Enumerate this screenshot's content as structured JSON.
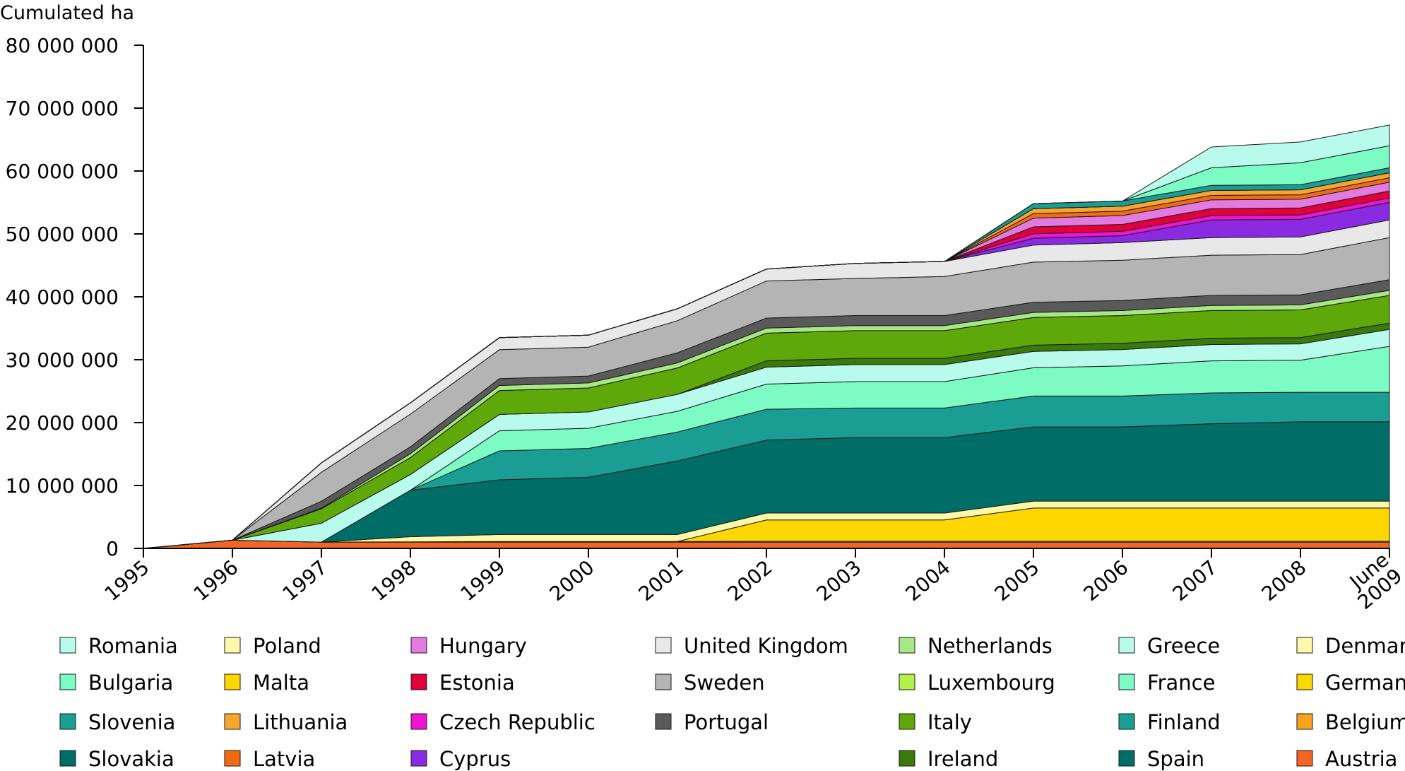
{
  "chart_data": {
    "type": "area",
    "stacked": true,
    "ylabel": "Cumulated ha",
    "ylim": [
      0,
      80000000
    ],
    "yticks": [
      {
        "value": 0,
        "label": "0"
      },
      {
        "value": 10000000,
        "label": "10 000 000"
      },
      {
        "value": 20000000,
        "label": "20 000 000"
      },
      {
        "value": 30000000,
        "label": "30 000 000"
      },
      {
        "value": 40000000,
        "label": "40 000 000"
      },
      {
        "value": 50000000,
        "label": "50 000 000"
      },
      {
        "value": 60000000,
        "label": "60 000 000"
      },
      {
        "value": 70000000,
        "label": "70 000 000"
      },
      {
        "value": 80000000,
        "label": "80 000 000"
      }
    ],
    "categories": [
      "1995",
      "1996",
      "1997",
      "1998",
      "1999",
      "2000",
      "2001",
      "2002",
      "2003",
      "2004",
      "2005",
      "2006",
      "2007",
      "2008",
      "June 2009"
    ],
    "grid": false,
    "legend_position": "bottom",
    "series": [
      {
        "name": "Austria",
        "color": "#f26522",
        "values": [
          0,
          1300000,
          1000000,
          1000000,
          1000000,
          1000000,
          1000000,
          1000000,
          1000000,
          1000000,
          1000000,
          1000000,
          1000000,
          1000000,
          1000000
        ]
      },
      {
        "name": "Belgium",
        "color": "#f7a21b",
        "values": [
          0,
          0,
          0,
          50000,
          100000,
          100000,
          100000,
          120000,
          120000,
          120000,
          120000,
          120000,
          120000,
          120000,
          120000
        ]
      },
      {
        "name": "Germany",
        "color": "#ffd700",
        "values": [
          0,
          0,
          0,
          0,
          0,
          0,
          0,
          3400000,
          3400000,
          3400000,
          5300000,
          5300000,
          5300000,
          5300000,
          5300000
        ]
      },
      {
        "name": "Denmark",
        "color": "#fff8a8",
        "values": [
          0,
          0,
          0,
          800000,
          1100000,
          1100000,
          1100000,
          1100000,
          1100000,
          1100000,
          1100000,
          1100000,
          1100000,
          1100000,
          1100000
        ]
      },
      {
        "name": "Spain",
        "color": "#006e66",
        "values": [
          0,
          0,
          0,
          7400000,
          8700000,
          9100000,
          11700000,
          11600000,
          12000000,
          12000000,
          11800000,
          11800000,
          12300000,
          12600000,
          12600000
        ]
      },
      {
        "name": "Finland",
        "color": "#1a9e94",
        "values": [
          0,
          0,
          0,
          0,
          4600000,
          4600000,
          4600000,
          4900000,
          4700000,
          4700000,
          4900000,
          4900000,
          4900000,
          4700000,
          4700000
        ]
      },
      {
        "name": "France",
        "color": "#7dfbc4",
        "values": [
          0,
          0,
          0,
          0,
          3200000,
          3200000,
          3300000,
          4000000,
          4200000,
          4200000,
          4500000,
          4800000,
          5100000,
          5100000,
          7300000
        ]
      },
      {
        "name": "Greece",
        "color": "#b8fbec",
        "values": [
          0,
          0,
          3000000,
          2500000,
          2600000,
          2600000,
          2700000,
          2700000,
          2700000,
          2700000,
          2600000,
          2600000,
          2600000,
          2600000,
          2700000
        ]
      },
      {
        "name": "Ireland",
        "color": "#3a7a0a",
        "values": [
          0,
          0,
          0,
          0,
          0,
          0,
          0,
          1000000,
          1000000,
          1000000,
          1000000,
          1000000,
          1000000,
          1000000,
          1000000
        ]
      },
      {
        "name": "Italy",
        "color": "#5fa80a",
        "values": [
          0,
          0,
          2300000,
          2700000,
          3800000,
          3800000,
          4200000,
          4400000,
          4400000,
          4400000,
          4400000,
          4400000,
          4400000,
          4400000,
          4400000
        ]
      },
      {
        "name": "Luxembourg",
        "color": "#b0f24a",
        "values": [
          0,
          0,
          0,
          0,
          0,
          0,
          0,
          0,
          0,
          0,
          0,
          0,
          0,
          0,
          0
        ]
      },
      {
        "name": "Netherlands",
        "color": "#a8e884",
        "values": [
          0,
          0,
          100000,
          600000,
          800000,
          800000,
          800000,
          800000,
          800000,
          800000,
          800000,
          800000,
          800000,
          800000,
          800000
        ]
      },
      {
        "name": "Portugal",
        "color": "#5a5a5a",
        "values": [
          0,
          0,
          1100000,
          1100000,
          1100000,
          1100000,
          1600000,
          1600000,
          1600000,
          1600000,
          1600000,
          1600000,
          1600000,
          1600000,
          1700000
        ]
      },
      {
        "name": "Sweden",
        "color": "#b4b4b4",
        "values": [
          0,
          0,
          4600000,
          5200000,
          4600000,
          4600000,
          5100000,
          5900000,
          5900000,
          6200000,
          6400000,
          6400000,
          6400000,
          6400000,
          6700000
        ]
      },
      {
        "name": "United Kingdom",
        "color": "#e8e8e8",
        "values": [
          0,
          0,
          1500000,
          1800000,
          1900000,
          1900000,
          1900000,
          1900000,
          2400000,
          2400000,
          2700000,
          2800000,
          2800000,
          2800000,
          2800000
        ]
      },
      {
        "name": "Cyprus",
        "color": "#8a2be2",
        "values": [
          0,
          0,
          0,
          0,
          0,
          0,
          0,
          0,
          0,
          0,
          1100000,
          1100000,
          2800000,
          2800000,
          2800000
        ]
      },
      {
        "name": "Czech Republic",
        "color": "#ef14d2",
        "values": [
          0,
          0,
          0,
          0,
          0,
          0,
          0,
          0,
          0,
          0,
          700000,
          700000,
          700000,
          700000,
          700000
        ]
      },
      {
        "name": "Estonia",
        "color": "#e2003a",
        "values": [
          0,
          0,
          0,
          0,
          0,
          0,
          0,
          0,
          0,
          0,
          1100000,
          1100000,
          1100000,
          1100000,
          1100000
        ]
      },
      {
        "name": "Hungary",
        "color": "#e27ae0",
        "values": [
          0,
          0,
          0,
          0,
          0,
          0,
          0,
          0,
          0,
          0,
          1400000,
          1400000,
          1400000,
          1400000,
          1400000
        ]
      },
      {
        "name": "Latvia",
        "color": "#f26b14",
        "values": [
          0,
          0,
          0,
          0,
          0,
          0,
          0,
          0,
          0,
          0,
          700000,
          700000,
          700000,
          700000,
          700000
        ]
      },
      {
        "name": "Lithuania",
        "color": "#f7a530",
        "values": [
          0,
          0,
          0,
          0,
          0,
          0,
          0,
          0,
          0,
          0,
          800000,
          800000,
          800000,
          800000,
          800000
        ]
      },
      {
        "name": "Malta",
        "color": "#ffd700",
        "values": [
          0,
          0,
          0,
          0,
          0,
          0,
          0,
          0,
          0,
          0,
          0,
          0,
          0,
          0,
          0
        ]
      },
      {
        "name": "Poland",
        "color": "#fff8a8",
        "values": [
          0,
          0,
          0,
          0,
          0,
          0,
          0,
          0,
          0,
          0,
          0,
          0,
          0,
          0,
          0
        ]
      },
      {
        "name": "Slovakia",
        "color": "#006e66",
        "values": [
          0,
          0,
          0,
          0,
          0,
          0,
          0,
          0,
          0,
          0,
          0,
          0,
          0,
          0,
          0
        ]
      },
      {
        "name": "Slovenia",
        "color": "#1a9e94",
        "values": [
          0,
          0,
          0,
          0,
          0,
          0,
          0,
          0,
          0,
          0,
          800000,
          800000,
          800000,
          800000,
          800000
        ]
      },
      {
        "name": "Bulgaria",
        "color": "#7dfbc4",
        "values": [
          0,
          0,
          0,
          0,
          0,
          0,
          0,
          0,
          0,
          0,
          0,
          0,
          2800000,
          3500000,
          3500000
        ]
      },
      {
        "name": "Romania",
        "color": "#b8fbec",
        "values": [
          0,
          0,
          0,
          0,
          0,
          0,
          0,
          0,
          0,
          0,
          0,
          0,
          3300000,
          3300000,
          3300000
        ]
      }
    ],
    "legend_columns": [
      [
        "Romania",
        "Bulgaria",
        "Slovenia",
        "Slovakia"
      ],
      [
        "Poland",
        "Malta",
        "Lithuania",
        "Latvia"
      ],
      [
        "Hungary",
        "Estonia",
        "Czech Republic",
        "Cyprus"
      ],
      [
        "United Kingdom",
        "Sweden",
        "Portugal"
      ],
      [
        "Netherlands",
        "Luxembourg",
        "Italy",
        "Ireland"
      ],
      [
        "Greece",
        "France",
        "Finland",
        "Spain"
      ],
      [
        "Denmark",
        "Germany",
        "Belgium",
        "Austria"
      ]
    ]
  }
}
